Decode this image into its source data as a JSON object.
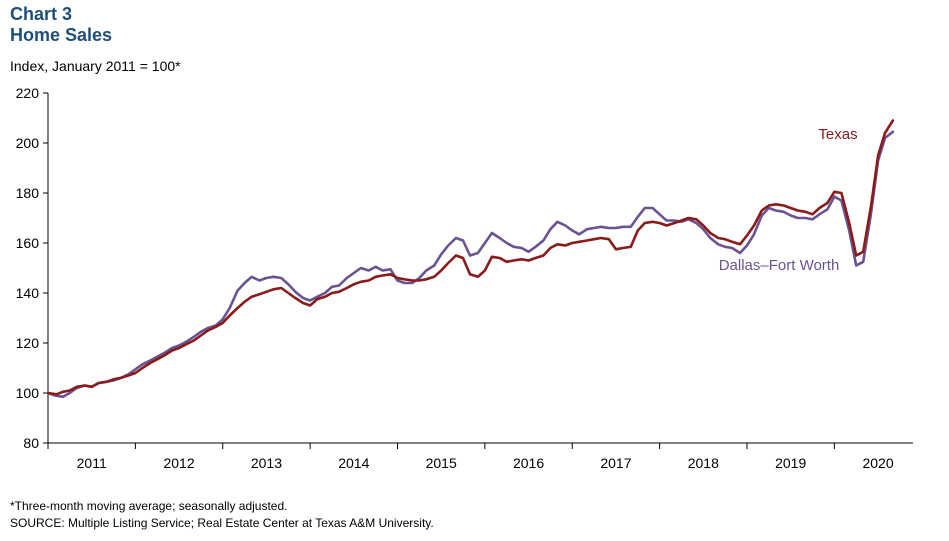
{
  "header": {
    "chart_number": "Chart 3",
    "chart_title": "Home Sales"
  },
  "notes": {
    "footnote": "*Three-month  moving  average;  seasonally  adjusted.",
    "source": "SOURCE: Multiple Listing Service;  Real Estate Center at Texas A&M University."
  },
  "colors": {
    "texas": "#8b1a1a",
    "dfw": "#6a5392",
    "title": "#1f4e79"
  },
  "chart_data": {
    "type": "line",
    "title": "Home Sales",
    "ylabel": "Index, January 2011 = 100*",
    "xlabel": "",
    "ylim": [
      80,
      220
    ],
    "yticks": [
      80,
      100,
      120,
      140,
      160,
      180,
      200,
      220
    ],
    "xlim": [
      2011.0,
      2020.9
    ],
    "xtick_labels": [
      "2011",
      "2012",
      "2013",
      "2014",
      "2015",
      "2016",
      "2017",
      "2018",
      "2019",
      "2020"
    ],
    "grid": false,
    "series": [
      {
        "name": "Texas",
        "points": [
          [
            2011.0,
            100
          ],
          [
            2011.1,
            99.5
          ],
          [
            2011.17,
            100.5
          ],
          [
            2011.25,
            101
          ],
          [
            2011.33,
            102.5
          ],
          [
            2011.42,
            103
          ],
          [
            2011.5,
            102.5
          ],
          [
            2011.58,
            104
          ],
          [
            2011.67,
            104.5
          ],
          [
            2011.75,
            105.5
          ],
          [
            2011.83,
            106
          ],
          [
            2011.92,
            107
          ],
          [
            2012.0,
            108
          ],
          [
            2012.08,
            110
          ],
          [
            2012.17,
            112
          ],
          [
            2012.25,
            113.5
          ],
          [
            2012.33,
            115
          ],
          [
            2012.42,
            117
          ],
          [
            2012.5,
            118
          ],
          [
            2012.58,
            119.5
          ],
          [
            2012.67,
            121
          ],
          [
            2012.75,
            123
          ],
          [
            2012.83,
            125
          ],
          [
            2012.92,
            126.5
          ],
          [
            2013.0,
            128
          ],
          [
            2013.08,
            131
          ],
          [
            2013.17,
            134
          ],
          [
            2013.25,
            136.5
          ],
          [
            2013.33,
            138.5
          ],
          [
            2013.42,
            139.5
          ],
          [
            2013.5,
            140.5
          ],
          [
            2013.58,
            141.5
          ],
          [
            2013.67,
            142
          ],
          [
            2013.75,
            140
          ],
          [
            2013.83,
            138
          ],
          [
            2013.92,
            136
          ],
          [
            2014.0,
            135
          ],
          [
            2014.08,
            137.5
          ],
          [
            2014.17,
            138.5
          ],
          [
            2014.25,
            140
          ],
          [
            2014.33,
            140.5
          ],
          [
            2014.42,
            142
          ],
          [
            2014.5,
            143.5
          ],
          [
            2014.58,
            144.5
          ],
          [
            2014.67,
            145
          ],
          [
            2014.75,
            146.5
          ],
          [
            2014.83,
            147
          ],
          [
            2014.92,
            147.5
          ],
          [
            2015.0,
            146
          ],
          [
            2015.08,
            145.5
          ],
          [
            2015.17,
            145
          ],
          [
            2015.25,
            145
          ],
          [
            2015.33,
            145.5
          ],
          [
            2015.42,
            146.5
          ],
          [
            2015.5,
            149
          ],
          [
            2015.58,
            152
          ],
          [
            2015.67,
            155
          ],
          [
            2015.75,
            154
          ],
          [
            2015.83,
            147.5
          ],
          [
            2015.92,
            146.5
          ],
          [
            2016.0,
            149
          ],
          [
            2016.08,
            154.5
          ],
          [
            2016.17,
            154
          ],
          [
            2016.25,
            152.5
          ],
          [
            2016.33,
            153
          ],
          [
            2016.42,
            153.5
          ],
          [
            2016.5,
            153
          ],
          [
            2016.58,
            154
          ],
          [
            2016.67,
            155
          ],
          [
            2016.75,
            158
          ],
          [
            2016.83,
            159.5
          ],
          [
            2016.92,
            159
          ],
          [
            2017.0,
            160
          ],
          [
            2017.08,
            160.5
          ],
          [
            2017.17,
            161
          ],
          [
            2017.25,
            161.5
          ],
          [
            2017.33,
            162
          ],
          [
            2017.42,
            161.5
          ],
          [
            2017.5,
            157.5
          ],
          [
            2017.58,
            158
          ],
          [
            2017.67,
            158.5
          ],
          [
            2017.75,
            165
          ],
          [
            2017.83,
            168
          ],
          [
            2017.92,
            168.5
          ],
          [
            2018.0,
            168
          ],
          [
            2018.08,
            167
          ],
          [
            2018.17,
            168
          ],
          [
            2018.25,
            169
          ],
          [
            2018.33,
            170
          ],
          [
            2018.42,
            169.5
          ],
          [
            2018.5,
            167
          ],
          [
            2018.58,
            164
          ],
          [
            2018.67,
            162
          ],
          [
            2018.75,
            161.5
          ],
          [
            2018.83,
            160.5
          ],
          [
            2018.92,
            159.5
          ],
          [
            2019.0,
            163
          ],
          [
            2019.08,
            167
          ],
          [
            2019.17,
            173
          ],
          [
            2019.25,
            175
          ],
          [
            2019.33,
            175.5
          ],
          [
            2019.42,
            175
          ],
          [
            2019.5,
            174
          ],
          [
            2019.58,
            173
          ],
          [
            2019.67,
            172.5
          ],
          [
            2019.75,
            171.5
          ],
          [
            2019.83,
            174
          ],
          [
            2019.92,
            176
          ],
          [
            2020.0,
            180.5
          ],
          [
            2020.08,
            180
          ],
          [
            2020.17,
            168
          ],
          [
            2020.25,
            155
          ],
          [
            2020.33,
            156.5
          ],
          [
            2020.42,
            175
          ],
          [
            2020.5,
            195
          ],
          [
            2020.58,
            204
          ],
          [
            2020.67,
            209
          ]
        ]
      },
      {
        "name": "Dallas–Fort Worth",
        "points": [
          [
            2011.0,
            100
          ],
          [
            2011.08,
            99
          ],
          [
            2011.17,
            98.5
          ],
          [
            2011.25,
            100
          ],
          [
            2011.33,
            102
          ],
          [
            2011.42,
            103
          ],
          [
            2011.5,
            102.5
          ],
          [
            2011.58,
            104
          ],
          [
            2011.67,
            104.5
          ],
          [
            2011.75,
            105
          ],
          [
            2011.83,
            106
          ],
          [
            2011.92,
            107.5
          ],
          [
            2012.0,
            109.5
          ],
          [
            2012.08,
            111.5
          ],
          [
            2012.17,
            113
          ],
          [
            2012.25,
            114.5
          ],
          [
            2012.33,
            116
          ],
          [
            2012.42,
            118
          ],
          [
            2012.5,
            119
          ],
          [
            2012.58,
            120.5
          ],
          [
            2012.67,
            122.5
          ],
          [
            2012.75,
            124.5
          ],
          [
            2012.83,
            126
          ],
          [
            2012.92,
            127
          ],
          [
            2013.0,
            129.5
          ],
          [
            2013.08,
            134
          ],
          [
            2013.17,
            141
          ],
          [
            2013.25,
            144
          ],
          [
            2013.33,
            146.5
          ],
          [
            2013.42,
            145
          ],
          [
            2013.5,
            146
          ],
          [
            2013.58,
            146.5
          ],
          [
            2013.67,
            146
          ],
          [
            2013.75,
            143.5
          ],
          [
            2013.83,
            140.5
          ],
          [
            2013.92,
            138
          ],
          [
            2014.0,
            137
          ],
          [
            2014.08,
            138.5
          ],
          [
            2014.17,
            140
          ],
          [
            2014.25,
            142.5
          ],
          [
            2014.33,
            143
          ],
          [
            2014.42,
            146
          ],
          [
            2014.5,
            148
          ],
          [
            2014.58,
            150
          ],
          [
            2014.67,
            149
          ],
          [
            2014.75,
            150.5
          ],
          [
            2014.83,
            149
          ],
          [
            2014.92,
            149.5
          ],
          [
            2015.0,
            145
          ],
          [
            2015.08,
            144
          ],
          [
            2015.17,
            144
          ],
          [
            2015.25,
            146
          ],
          [
            2015.33,
            149
          ],
          [
            2015.42,
            151
          ],
          [
            2015.5,
            155.5
          ],
          [
            2015.58,
            159
          ],
          [
            2015.67,
            162
          ],
          [
            2015.75,
            161
          ],
          [
            2015.83,
            155
          ],
          [
            2015.92,
            156
          ],
          [
            2016.0,
            160
          ],
          [
            2016.08,
            164
          ],
          [
            2016.17,
            162
          ],
          [
            2016.25,
            160
          ],
          [
            2016.33,
            158.5
          ],
          [
            2016.42,
            158
          ],
          [
            2016.5,
            156.5
          ],
          [
            2016.58,
            158.5
          ],
          [
            2016.67,
            161
          ],
          [
            2016.75,
            165.5
          ],
          [
            2016.83,
            168.5
          ],
          [
            2016.92,
            167
          ],
          [
            2017.0,
            165
          ],
          [
            2017.08,
            163.5
          ],
          [
            2017.17,
            165.5
          ],
          [
            2017.25,
            166
          ],
          [
            2017.33,
            166.5
          ],
          [
            2017.42,
            166
          ],
          [
            2017.5,
            166
          ],
          [
            2017.58,
            166.5
          ],
          [
            2017.67,
            166.5
          ],
          [
            2017.75,
            170.5
          ],
          [
            2017.83,
            174
          ],
          [
            2017.92,
            174
          ],
          [
            2018.0,
            171.5
          ],
          [
            2018.08,
            169
          ],
          [
            2018.17,
            169
          ],
          [
            2018.25,
            168.5
          ],
          [
            2018.33,
            169.5
          ],
          [
            2018.42,
            168
          ],
          [
            2018.5,
            165.5
          ],
          [
            2018.58,
            162
          ],
          [
            2018.67,
            159.5
          ],
          [
            2018.75,
            158.5
          ],
          [
            2018.83,
            158
          ],
          [
            2018.92,
            156
          ],
          [
            2019.0,
            159
          ],
          [
            2019.08,
            163.5
          ],
          [
            2019.17,
            171
          ],
          [
            2019.25,
            174
          ],
          [
            2019.33,
            173
          ],
          [
            2019.42,
            172.5
          ],
          [
            2019.5,
            171
          ],
          [
            2019.58,
            170
          ],
          [
            2019.67,
            170
          ],
          [
            2019.75,
            169.5
          ],
          [
            2019.83,
            171.5
          ],
          [
            2019.92,
            173.5
          ],
          [
            2020.0,
            178.5
          ],
          [
            2020.08,
            177
          ],
          [
            2020.17,
            165
          ],
          [
            2020.25,
            151
          ],
          [
            2020.33,
            152.5
          ],
          [
            2020.42,
            172
          ],
          [
            2020.5,
            193
          ],
          [
            2020.58,
            202
          ],
          [
            2020.67,
            204.5
          ]
        ]
      }
    ],
    "annotations": [
      {
        "series": "Texas",
        "text": "Texas"
      },
      {
        "series": "Dallas–Fort Worth",
        "text": "Dallas–Fort Worth"
      }
    ]
  }
}
